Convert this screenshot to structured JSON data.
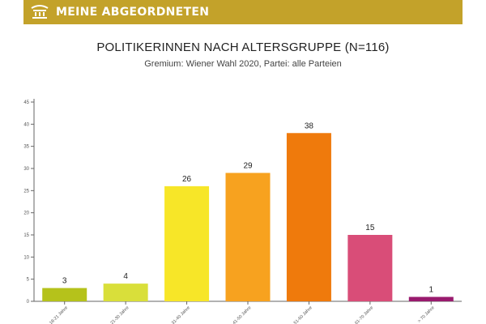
{
  "header": {
    "brand": "MEINE ABGEORDNETEN",
    "logo_icon": "parliament-logo-icon",
    "color": "#c3a22a"
  },
  "chart_data": {
    "type": "bar",
    "title": "POLITIKERINNEN NACH ALTERSGRUPPE (N=116)",
    "subtitle": "Gremium: Wiener Wahl 2020, Partei: alle Parteien",
    "categories": [
      "18-21 Jahre",
      "21-30 Jahre",
      "31-40 Jahre",
      "41-50 Jahre",
      "51-60 Jahre",
      "61-70 Jahre",
      "> 70 Jahre"
    ],
    "values": [
      3,
      4,
      26,
      29,
      38,
      15,
      1
    ],
    "colors": [
      "#b5c21b",
      "#d9df3a",
      "#f7e628",
      "#f7a21f",
      "#ef7a0c",
      "#d94d78",
      "#991a6e"
    ],
    "ylim": [
      0,
      45
    ],
    "yticks": [
      0,
      5,
      10,
      15,
      20,
      25,
      30,
      35,
      40,
      45
    ],
    "grid": false,
    "legend": "none",
    "xlabel": "",
    "ylabel": ""
  }
}
